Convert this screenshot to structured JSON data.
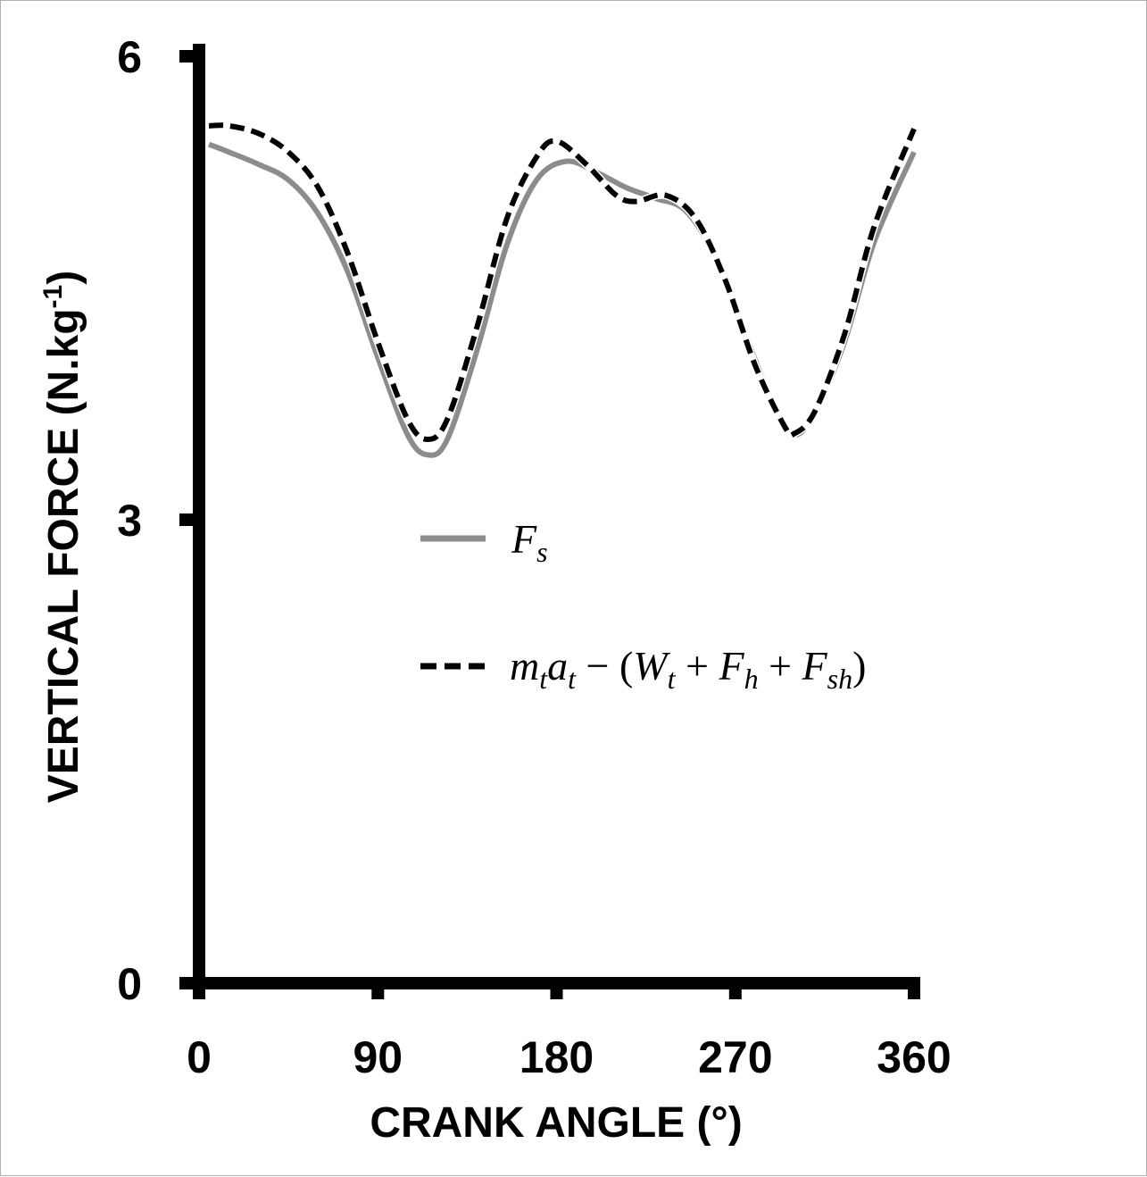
{
  "chart_data": {
    "type": "line",
    "xlabel": "CRANK ANGLE (°)",
    "ylabel_main": "VERTICAL FORCE (N.kg",
    "ylabel_sup": "-1",
    "ylabel_close": ")",
    "xlim": [
      0,
      360
    ],
    "ylim": [
      0,
      6
    ],
    "x_ticks": [
      0,
      90,
      180,
      270,
      360
    ],
    "x_tick_labels": [
      "0",
      "90",
      "180",
      "270",
      "360"
    ],
    "y_ticks": [
      0,
      3,
      6
    ],
    "y_tick_labels": [
      "0",
      "3",
      "6"
    ],
    "grid": false,
    "legend_position": "center",
    "series": [
      {
        "name": "F_s",
        "legend_label": "Fs",
        "color": "#8c8c8c",
        "style": "solid",
        "x": [
          5,
          15,
          30,
          45,
          60,
          75,
          90,
          105,
          115,
          125,
          140,
          155,
          170,
          185,
          200,
          215,
          230,
          245,
          260,
          275,
          290,
          300,
          310,
          325,
          340,
          360
        ],
        "y": [
          5.43,
          5.38,
          5.3,
          5.2,
          4.98,
          4.6,
          4.05,
          3.55,
          3.42,
          3.52,
          4.1,
          4.78,
          5.2,
          5.32,
          5.25,
          5.15,
          5.08,
          5.0,
          4.7,
          4.2,
          3.72,
          3.55,
          3.7,
          4.15,
          4.8,
          5.38
        ]
      },
      {
        "name": "m_t a_t − (W_t + F_h + F_sh)",
        "legend_label": "mtat − (Wt + Fh + Fsh)",
        "color": "#000000",
        "style": "dashed",
        "x": [
          5,
          15,
          30,
          45,
          60,
          75,
          90,
          105,
          115,
          125,
          140,
          155,
          170,
          180,
          195,
          210,
          220,
          235,
          250,
          265,
          280,
          295,
          300,
          310,
          325,
          340,
          360
        ],
        "y": [
          5.55,
          5.55,
          5.5,
          5.38,
          5.15,
          4.72,
          4.15,
          3.65,
          3.52,
          3.65,
          4.25,
          4.95,
          5.35,
          5.45,
          5.3,
          5.1,
          5.06,
          5.1,
          4.95,
          4.55,
          4.0,
          3.6,
          3.56,
          3.7,
          4.2,
          4.9,
          5.53
        ]
      }
    ]
  }
}
